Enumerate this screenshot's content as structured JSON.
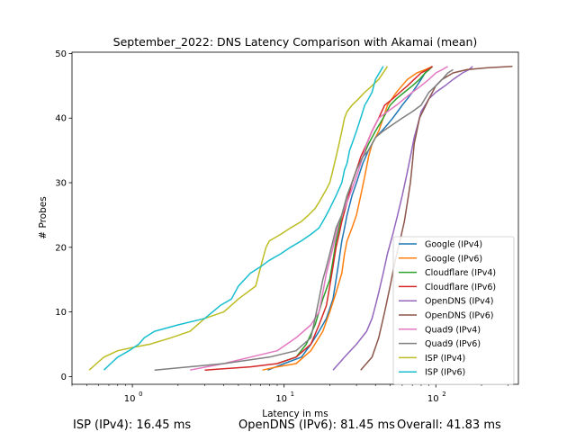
{
  "chart_data": {
    "type": "line",
    "title": "September_2022: DNS Latency Comparison with Akamai (mean)",
    "xlabel": "Latency in ms",
    "ylabel": "# Probes",
    "xscale": "log",
    "xlim": [
      0.4,
      350
    ],
    "ylim": [
      -1.2,
      50.2
    ],
    "x_ticks": [
      {
        "value": 1,
        "mantissa": "10",
        "exp": "0"
      },
      {
        "value": 10,
        "mantissa": "10",
        "exp": "1"
      },
      {
        "value": 100,
        "mantissa": "10",
        "exp": "2"
      }
    ],
    "y_ticks": [
      0,
      10,
      20,
      30,
      40,
      50
    ],
    "legend_position": "lower-right",
    "grid": false,
    "series": [
      {
        "name": "Google (IPv4)",
        "color": "#1f77b4",
        "x": [
          7.8,
          10,
          13,
          15,
          17,
          19,
          21,
          22,
          23,
          24,
          25,
          26,
          28,
          30,
          33,
          36,
          40,
          44,
          48,
          52,
          56,
          60,
          65,
          70,
          75,
          80,
          85,
          90,
          95
        ],
        "y": [
          1,
          2,
          3,
          5,
          7,
          9,
          12,
          15,
          18,
          21,
          23,
          25,
          28,
          30,
          33,
          35,
          37,
          38,
          39,
          40,
          41,
          42,
          43,
          44,
          45,
          46,
          47,
          47.5,
          48
        ]
      },
      {
        "name": "Google (IPv6)",
        "color": "#ff7f0e",
        "x": [
          7.2,
          9,
          12,
          15,
          18,
          20,
          22,
          24,
          25,
          26,
          28,
          30,
          32,
          34,
          36,
          38,
          40,
          42,
          45,
          48,
          55,
          65,
          75,
          85,
          95
        ],
        "y": [
          1,
          1.5,
          2,
          4,
          7,
          10,
          13,
          16,
          19,
          21,
          23,
          25,
          28,
          31,
          34,
          36,
          37,
          38,
          40,
          42,
          44,
          46,
          47,
          47.5,
          48
        ]
      },
      {
        "name": "Cloudflare (IPv4)",
        "color": "#2ca02c",
        "x": [
          9,
          12,
          14,
          16,
          18,
          20,
          21,
          22,
          23,
          24,
          26,
          28,
          30,
          33,
          36,
          40,
          45,
          50,
          55,
          62,
          70,
          78,
          85,
          90,
          95
        ],
        "y": [
          2,
          3,
          5,
          8,
          12,
          15,
          18,
          21,
          23,
          25,
          28,
          30,
          32,
          34,
          36,
          38,
          40,
          42,
          43,
          44,
          45,
          46,
          47,
          47.5,
          48
        ]
      },
      {
        "name": "Cloudflare (IPv6)",
        "color": "#d62728",
        "x": [
          3,
          6,
          9,
          12,
          15,
          17,
          19,
          20,
          21,
          22,
          23,
          24,
          26,
          28,
          30,
          32,
          35,
          38,
          42,
          46,
          52,
          58,
          65,
          72,
          80,
          88,
          95
        ],
        "y": [
          1,
          1.5,
          2,
          3,
          5,
          8,
          11,
          14,
          17,
          20,
          22,
          24,
          27,
          30,
          32,
          34,
          36,
          38,
          40,
          42,
          43,
          44,
          45,
          46,
          47,
          47.5,
          48
        ]
      },
      {
        "name": "OpenDNS (IPv4)",
        "color": "#9467bd",
        "x": [
          21,
          25,
          30,
          35,
          38,
          40,
          42,
          45,
          48,
          52,
          56,
          60,
          64,
          68,
          72,
          76,
          80,
          85,
          90,
          100,
          115,
          130,
          150,
          165,
          175
        ],
        "y": [
          1,
          3,
          5,
          7,
          9,
          11,
          13,
          16,
          19,
          22,
          25,
          28,
          31,
          34,
          37,
          39,
          41,
          42,
          43,
          44,
          45,
          46,
          47,
          47.5,
          48
        ]
      },
      {
        "name": "OpenDNS (IPv6)",
        "color": "#8c564b",
        "x": [
          32,
          38,
          42,
          46,
          50,
          54,
          58,
          62,
          65,
          68,
          70,
          72,
          75,
          78,
          82,
          86,
          90,
          95,
          100,
          110,
          130,
          160,
          220,
          320
        ],
        "y": [
          1,
          3,
          6,
          10,
          14,
          18,
          21,
          24,
          27,
          30,
          33,
          36,
          38,
          40,
          41,
          42,
          43,
          44,
          45,
          46,
          47,
          47.5,
          47.8,
          48
        ]
      },
      {
        "name": "Quad9 (IPv4)",
        "color": "#e377c2",
        "x": [
          2.4,
          4,
          6,
          9,
          12,
          15,
          17,
          18,
          19,
          20,
          21,
          22,
          23,
          25,
          27,
          29,
          31,
          33,
          35,
          38,
          42,
          48,
          55,
          62,
          70,
          80,
          90,
          100,
          110,
          120
        ],
        "y": [
          1,
          2,
          3,
          4,
          6,
          8,
          10,
          13,
          16,
          18,
          20,
          22,
          24,
          26,
          28,
          30,
          32,
          34,
          36,
          38,
          40,
          41,
          42,
          43,
          44,
          45,
          46,
          47,
          47.5,
          48
        ]
      },
      {
        "name": "Quad9 (IPv6)",
        "color": "#7f7f7f",
        "x": [
          1.4,
          4,
          8,
          12,
          15,
          16,
          17,
          18,
          19,
          20,
          21,
          22,
          24,
          26,
          28,
          30,
          33,
          36,
          40,
          45,
          52,
          60,
          70,
          80,
          90,
          100,
          110,
          120,
          130
        ],
        "y": [
          1,
          2,
          3,
          4,
          6,
          9,
          12,
          15,
          17,
          19,
          21,
          23,
          25,
          28,
          30,
          32,
          34,
          35,
          37,
          38,
          39,
          40,
          41,
          42,
          44,
          45,
          46,
          47,
          47.5
        ]
      },
      {
        "name": "ISP (IPv4)",
        "color": "#bcbd22",
        "x": [
          0.52,
          0.58,
          0.65,
          0.8,
          1.0,
          1.3,
          1.8,
          2.4,
          3.0,
          4.0,
          5.0,
          6.5,
          7.2,
          7.6,
          8.0,
          9.5,
          11,
          13,
          14.5,
          16,
          17,
          18,
          19,
          20,
          21,
          22,
          23,
          24,
          25,
          26,
          28,
          31,
          34,
          38,
          42,
          48
        ],
        "y": [
          1,
          2,
          3,
          4,
          4.5,
          5,
          6,
          7,
          9,
          10,
          12,
          14,
          18,
          20,
          21,
          22,
          23,
          24,
          25,
          26,
          27,
          28,
          29,
          30,
          32,
          34,
          36,
          38,
          40,
          41,
          42,
          43,
          44,
          45,
          46,
          48
        ]
      },
      {
        "name": "ISP (IPv6)",
        "color": "#17becf",
        "x": [
          0.65,
          0.72,
          0.8,
          0.95,
          1.1,
          1.2,
          1.4,
          2.0,
          3.0,
          3.8,
          4.5,
          5.0,
          6.0,
          7.0,
          8.0,
          9.5,
          11,
          13,
          15,
          17,
          18,
          19,
          20,
          22,
          24,
          25,
          26,
          27,
          28,
          30,
          32,
          34,
          36,
          38,
          40,
          45
        ],
        "y": [
          1,
          2,
          3,
          4,
          5,
          6,
          7,
          8,
          9,
          11,
          12,
          14,
          16,
          17,
          18,
          19,
          20,
          21,
          22,
          23,
          24,
          25,
          26,
          28,
          30,
          32,
          33,
          35,
          36,
          38,
          40,
          42,
          43,
          44,
          46,
          48
        ]
      }
    ]
  },
  "summary": {
    "isp_ipv4": "ISP (IPv4): 16.45 ms",
    "opendns_ipv6": "OpenDNS (IPv6): 81.45 ms",
    "overall": "Overall: 41.83 ms"
  }
}
